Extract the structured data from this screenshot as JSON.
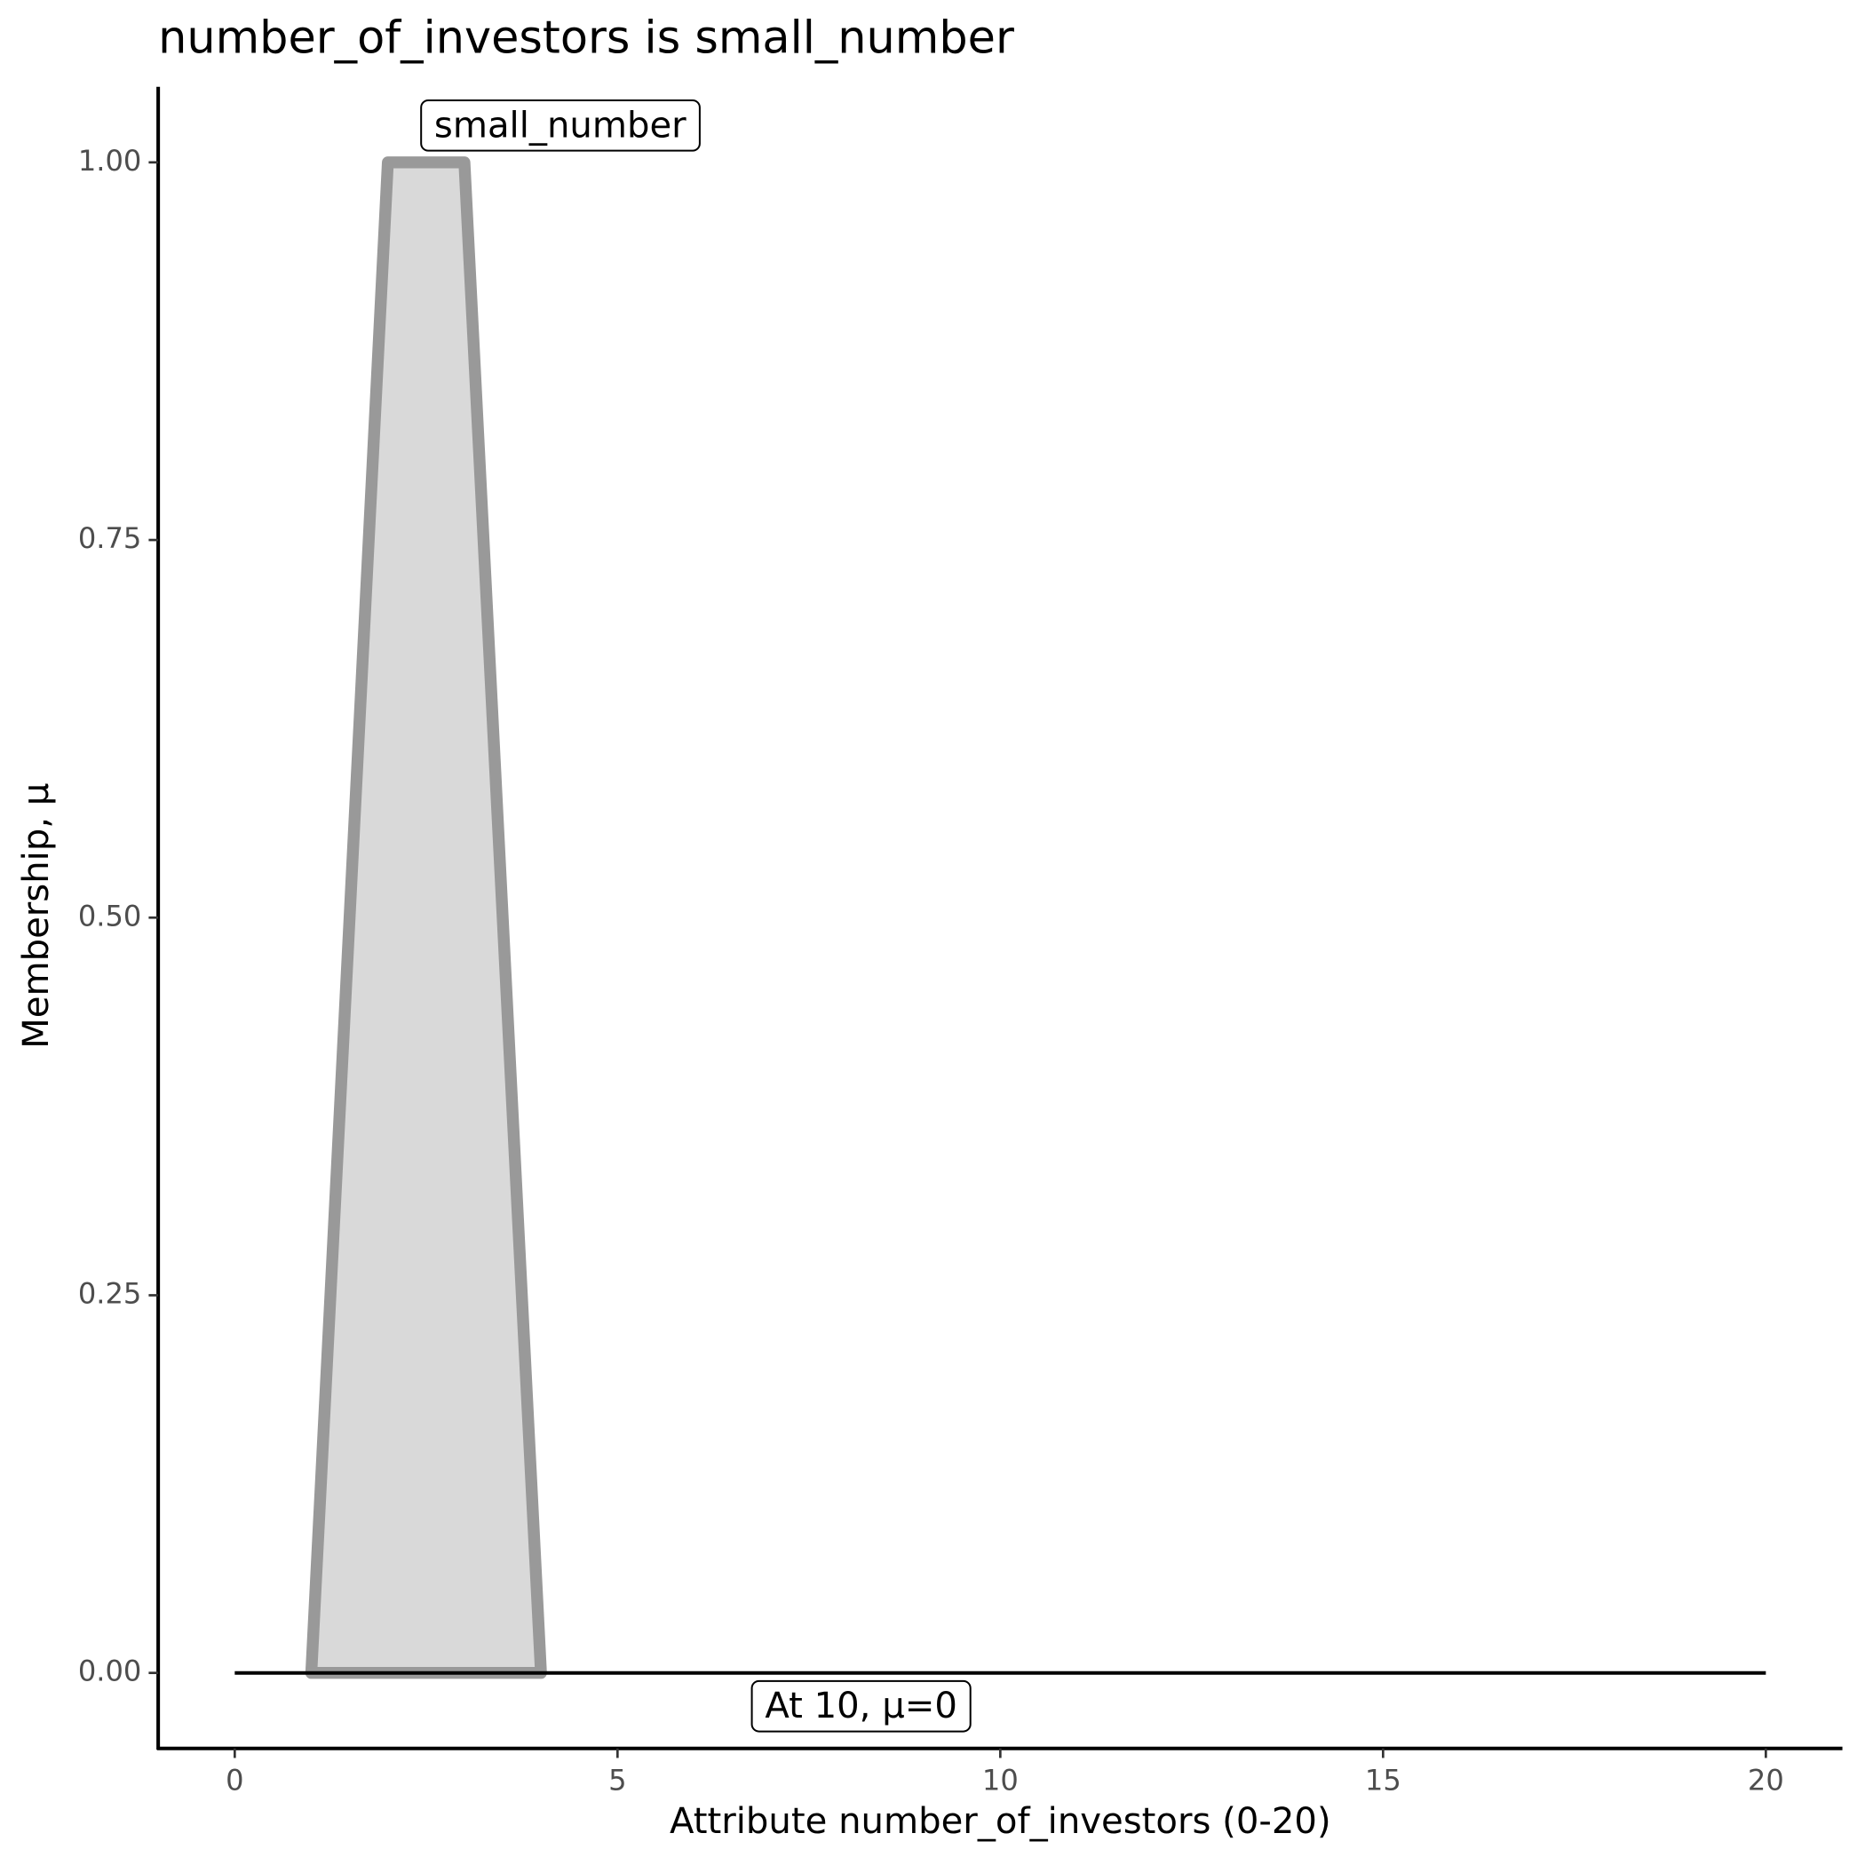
{
  "chart_data": {
    "type": "area",
    "title": "number_of_investors is small_number",
    "x_label": "Attribute number_of_investors (0-20)",
    "y_label": "Membership, μ",
    "series": [
      {
        "name": "small_number",
        "color": "#999999",
        "fill": "#d9d9d9",
        "x": [
          1,
          2,
          3,
          4
        ],
        "values": [
          0,
          1,
          1,
          0
        ]
      }
    ],
    "baseline": {
      "color": "#000000",
      "x": [
        0,
        20
      ],
      "values": [
        0,
        0
      ]
    },
    "annotation": "At 10, μ=0",
    "xlim": [
      -1,
      21
    ],
    "ylim": [
      -0.05,
      1.05
    ],
    "xticks": [
      0,
      5,
      10,
      15,
      20
    ],
    "yticks": [
      {
        "value": 0,
        "label": "0.00"
      },
      0.25,
      {
        "value": 0.5,
        "label": "0.50"
      },
      0.75,
      {
        "value": 1,
        "label": "1.00"
      }
    ],
    "grid": false
  }
}
